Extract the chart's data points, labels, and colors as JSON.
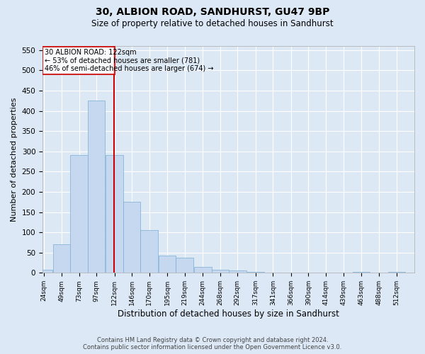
{
  "title": "30, ALBION ROAD, SANDHURST, GU47 9BP",
  "subtitle": "Size of property relative to detached houses in Sandhurst",
  "xlabel": "Distribution of detached houses by size in Sandhurst",
  "ylabel": "Number of detached properties",
  "bar_color": "#c5d8f0",
  "bar_edge_color": "#7aadd4",
  "background_color": "#dde8f5",
  "grid_color": "#ffffff",
  "annotation_box_color": "#cc0000",
  "vline_color": "#cc0000",
  "property_sqm": 122,
  "annotation_text_line1": "30 ALBION ROAD: 122sqm",
  "annotation_text_line2": "← 53% of detached houses are smaller (781)",
  "annotation_text_line3": "46% of semi-detached houses are larger (674) →",
  "bins": [
    24,
    49,
    73,
    97,
    122,
    146,
    170,
    195,
    219,
    244,
    268,
    292,
    317,
    341,
    366,
    390,
    414,
    439,
    463,
    488,
    512
  ],
  "counts": [
    8,
    70,
    290,
    425,
    290,
    175,
    105,
    43,
    37,
    15,
    8,
    5,
    2,
    0,
    0,
    1,
    0,
    0,
    2,
    0,
    2
  ],
  "ylim": [
    0,
    560
  ],
  "yticks": [
    0,
    50,
    100,
    150,
    200,
    250,
    300,
    350,
    400,
    450,
    500,
    550
  ],
  "footer_line1": "Contains HM Land Registry data © Crown copyright and database right 2024.",
  "footer_line2": "Contains public sector information licensed under the Open Government Licence v3.0."
}
